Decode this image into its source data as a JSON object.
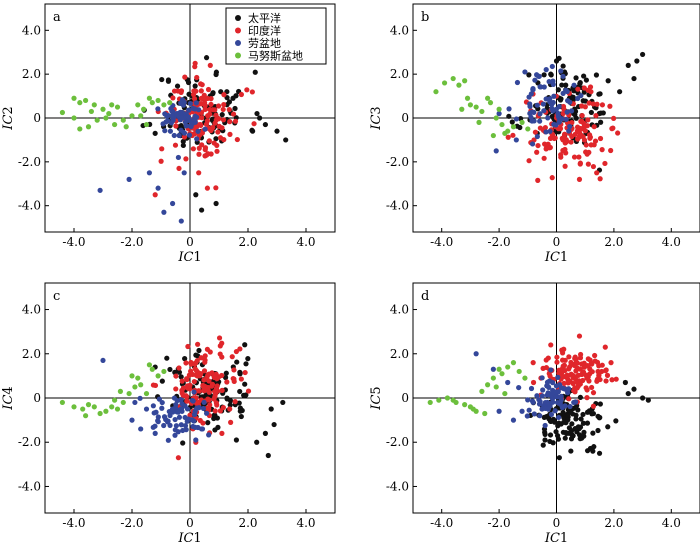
{
  "figure": {
    "legend": [
      {
        "label": "太平洋",
        "color": "#111111"
      },
      {
        "label": "印度洋",
        "color": "#e0262b"
      },
      {
        "label": "劳盆地",
        "color": "#34479a"
      },
      {
        "label": "马努斯盆地",
        "color": "#6cbf3c"
      }
    ]
  },
  "chart_data": [
    {
      "type": "scatter",
      "panel_label": "a",
      "xlabel": "IC1",
      "ylabel": "IC2",
      "xlim": [
        -5.0,
        5.0
      ],
      "ylim": [
        -5.2,
        5.2
      ],
      "xticks": [
        -4.0,
        -2.0,
        0,
        2.0,
        4.0
      ],
      "xtick_labels": [
        "-4.0",
        "-2.0",
        "0",
        "2.0",
        "4.0"
      ],
      "yticks": [
        -4.0,
        -2.0,
        0,
        2.0,
        4.0
      ],
      "ytick_labels": [
        "-4.0",
        "-2.0",
        "0",
        "2.0",
        "4.0"
      ],
      "has_legend": true,
      "series": [
        {
          "name": "太平洋",
          "color": "#111111",
          "n": 110,
          "cx": 0.4,
          "sx": 0.8,
          "cy": 0.3,
          "sy": 0.9,
          "seed": 11,
          "extra": [
            [
              2.6,
              -0.3
            ],
            [
              3.0,
              -0.6
            ],
            [
              3.3,
              -1.0
            ],
            [
              2.4,
              0.0
            ],
            [
              0.4,
              -4.2
            ],
            [
              0.9,
              -3.9
            ],
            [
              0.2,
              -3.5
            ]
          ]
        },
        {
          "name": "印度洋",
          "color": "#e0262b",
          "n": 130,
          "cx": 0.5,
          "sx": 0.6,
          "cy": -0.1,
          "sy": 1.0,
          "seed": 12,
          "extra": [
            [
              0.6,
              -3.2
            ],
            [
              0.3,
              -2.5
            ],
            [
              -1.2,
              -3.5
            ],
            [
              0.7,
              2.4
            ]
          ]
        },
        {
          "name": "劳盆地",
          "color": "#34479a",
          "n": 70,
          "cx": -0.3,
          "sx": 0.35,
          "cy": 0.0,
          "sy": 0.4,
          "seed": 13,
          "extra": [
            [
              -3.1,
              -3.3
            ],
            [
              -2.1,
              -2.8
            ],
            [
              -1.4,
              -2.5
            ],
            [
              -1.1,
              -3.2
            ],
            [
              -0.9,
              -4.3
            ],
            [
              -0.3,
              -4.7
            ],
            [
              -0.6,
              -3.9
            ],
            [
              -0.2,
              -2.5
            ],
            [
              -0.4,
              -1.8
            ]
          ]
        },
        {
          "name": "马努斯盆地",
          "color": "#6cbf3c",
          "n": 0,
          "cx": 0,
          "sx": 0,
          "cy": 0,
          "sy": 0,
          "seed": 14,
          "extra": [
            [
              -4.4,
              0.25
            ],
            [
              -4.0,
              0.9
            ],
            [
              -3.8,
              0.7
            ],
            [
              -3.6,
              0.8
            ],
            [
              -3.3,
              0.6
            ],
            [
              -3.0,
              0.4
            ],
            [
              -2.8,
              0.2
            ],
            [
              -3.5,
              -0.4
            ],
            [
              -3.2,
              -0.1
            ],
            [
              -2.9,
              0.0
            ],
            [
              -2.6,
              -0.3
            ],
            [
              -2.3,
              -0.1
            ],
            [
              -2.0,
              0.1
            ],
            [
              -1.8,
              0.6
            ],
            [
              -1.6,
              0.4
            ],
            [
              -1.4,
              0.9
            ],
            [
              -1.3,
              0.7
            ],
            [
              -1.1,
              0.8
            ],
            [
              -0.9,
              0.6
            ],
            [
              -0.7,
              0.7
            ],
            [
              -4.0,
              0.0
            ],
            [
              -3.8,
              -0.5
            ],
            [
              -2.7,
              0.6
            ],
            [
              -2.2,
              -0.4
            ],
            [
              -1.7,
              0.1
            ],
            [
              -1.5,
              -0.3
            ],
            [
              -3.4,
              0.3
            ],
            [
              -2.5,
              0.5
            ]
          ]
        }
      ]
    },
    {
      "type": "scatter",
      "panel_label": "b",
      "xlabel": "IC1",
      "ylabel": "IC3",
      "xlim": [
        -5.0,
        5.0
      ],
      "ylim": [
        -5.2,
        5.2
      ],
      "xticks": [
        -4.0,
        -2.0,
        0,
        2.0,
        4.0
      ],
      "xtick_labels": [
        "-4.0",
        "-2.0",
        "0",
        "2.0",
        "4.0"
      ],
      "yticks": [
        -4.0,
        -2.0,
        0,
        2.0,
        4.0
      ],
      "ytick_labels": [
        "-4.0",
        "-2.0",
        "0",
        "2.0",
        "4.0"
      ],
      "has_legend": false,
      "series": [
        {
          "name": "太平洋",
          "color": "#111111",
          "n": 110,
          "cx": 0.5,
          "sx": 0.7,
          "cy": 0.4,
          "sy": 0.9,
          "seed": 21,
          "extra": [
            [
              2.5,
              2.4
            ],
            [
              2.8,
              2.6
            ],
            [
              3.0,
              2.9
            ],
            [
              2.7,
              1.8
            ],
            [
              1.8,
              1.7
            ],
            [
              2.2,
              1.2
            ],
            [
              0.0,
              2.6
            ],
            [
              -0.2,
              2.0
            ]
          ]
        },
        {
          "name": "印度洋",
          "color": "#e0262b",
          "n": 130,
          "cx": 0.4,
          "sx": 0.7,
          "cy": -0.6,
          "sy": 0.8,
          "seed": 22,
          "extra": [
            [
              0.8,
              -2.8
            ],
            [
              1.4,
              -2.5
            ],
            [
              0.3,
              -2.2
            ],
            [
              1.6,
              0.6
            ],
            [
              1.2,
              1.2
            ]
          ]
        },
        {
          "name": "劳盆地",
          "color": "#34479a",
          "n": 70,
          "cx": -0.3,
          "sx": 0.5,
          "cy": 0.6,
          "sy": 0.7,
          "seed": 23,
          "extra": [
            [
              -2.1,
              -1.5
            ],
            [
              -2.0,
              0.2
            ],
            [
              -1.1,
              2.1
            ],
            [
              -0.6,
              1.9
            ],
            [
              -1.4,
              -1.0
            ]
          ]
        },
        {
          "name": "马努斯盆地",
          "color": "#6cbf3c",
          "n": 0,
          "cx": 0,
          "sx": 0,
          "cy": 0,
          "sy": 0,
          "seed": 24,
          "extra": [
            [
              -4.2,
              1.2
            ],
            [
              -3.9,
              1.6
            ],
            [
              -3.6,
              1.8
            ],
            [
              -3.4,
              1.5
            ],
            [
              -3.2,
              1.7
            ],
            [
              -3.0,
              0.6
            ],
            [
              -2.8,
              0.5
            ],
            [
              -2.6,
              0.3
            ],
            [
              -2.4,
              0.9
            ],
            [
              -2.3,
              0.7
            ],
            [
              -2.1,
              0.0
            ],
            [
              -1.9,
              -0.3
            ],
            [
              -1.7,
              -0.6
            ],
            [
              -1.5,
              -0.4
            ],
            [
              -1.2,
              -0.2
            ],
            [
              -1.0,
              -0.5
            ],
            [
              -3.3,
              0.4
            ],
            [
              -2.2,
              -0.8
            ],
            [
              -1.8,
              -0.7
            ],
            [
              -2.7,
              -0.2
            ],
            [
              -3.1,
              0.9
            ],
            [
              -2.0,
              0.4
            ]
          ]
        }
      ]
    },
    {
      "type": "scatter",
      "panel_label": "c",
      "xlabel": "IC1",
      "ylabel": "IC4",
      "xlim": [
        -5.0,
        5.0
      ],
      "ylim": [
        -5.2,
        5.2
      ],
      "xticks": [
        -4.0,
        -2.0,
        0,
        2.0,
        4.0
      ],
      "xtick_labels": [
        "-4.0",
        "-2.0",
        "0",
        "2.0",
        "4.0"
      ],
      "yticks": [
        -4.0,
        -2.0,
        0,
        2.0,
        4.0
      ],
      "ytick_labels": [
        "-4.0",
        "-2.0",
        "0",
        "2.0",
        "4.0"
      ],
      "has_legend": false,
      "series": [
        {
          "name": "太平洋",
          "color": "#111111",
          "n": 110,
          "cx": 0.6,
          "sx": 0.8,
          "cy": 0.2,
          "sy": 0.9,
          "seed": 31,
          "extra": [
            [
              2.6,
              -1.6
            ],
            [
              2.9,
              -1.2
            ],
            [
              3.2,
              -0.2
            ],
            [
              2.3,
              -2.0
            ],
            [
              2.7,
              -2.6
            ],
            [
              -0.8,
              1.8
            ],
            [
              -1.2,
              1.4
            ],
            [
              1.6,
              -1.9
            ]
          ]
        },
        {
          "name": "印度洋",
          "color": "#e0262b",
          "n": 130,
          "cx": 0.4,
          "sx": 0.6,
          "cy": 0.6,
          "sy": 0.9,
          "seed": 32,
          "extra": [
            [
              1.6,
              2.1
            ],
            [
              0.6,
              2.2
            ],
            [
              0.2,
              -2.0
            ],
            [
              -0.4,
              -2.7
            ],
            [
              1.1,
              -1.6
            ]
          ]
        },
        {
          "name": "劳盆地",
          "color": "#34479a",
          "n": 70,
          "cx": -0.4,
          "sx": 0.45,
          "cy": -0.9,
          "sy": 0.45,
          "seed": 33,
          "extra": [
            [
              -3.0,
              1.7
            ],
            [
              -2.0,
              -1.0
            ],
            [
              -1.7,
              -1.4
            ],
            [
              -1.5,
              -0.5
            ],
            [
              -1.9,
              -0.2
            ],
            [
              -1.2,
              -1.6
            ],
            [
              0.2,
              -1.9
            ],
            [
              0.4,
              -1.4
            ]
          ]
        },
        {
          "name": "马努斯盆地",
          "color": "#6cbf3c",
          "n": 0,
          "cx": 0,
          "sx": 0,
          "cy": 0,
          "sy": 0,
          "seed": 34,
          "extra": [
            [
              -4.4,
              -0.2
            ],
            [
              -4.0,
              -0.4
            ],
            [
              -3.7,
              -0.5
            ],
            [
              -3.5,
              -0.3
            ],
            [
              -3.3,
              -0.4
            ],
            [
              -3.1,
              -0.7
            ],
            [
              -2.9,
              -0.6
            ],
            [
              -2.7,
              -0.4
            ],
            [
              -2.5,
              -0.5
            ],
            [
              -2.3,
              -0.2
            ],
            [
              -2.1,
              0.2
            ],
            [
              -1.9,
              0.5
            ],
            [
              -1.7,
              0.6
            ],
            [
              -1.5,
              0.2
            ],
            [
              -2.0,
              1.0
            ],
            [
              -1.3,
              1.3
            ],
            [
              -1.1,
              1.0
            ],
            [
              -0.9,
              1.2
            ],
            [
              -2.4,
              0.3
            ],
            [
              -3.6,
              -0.8
            ],
            [
              -2.6,
              -0.1
            ],
            [
              -1.8,
              0.9
            ],
            [
              -1.4,
              1.5
            ]
          ]
        }
      ]
    },
    {
      "type": "scatter",
      "panel_label": "d",
      "xlabel": "IC1",
      "ylabel": "IC5",
      "xlim": [
        -5.0,
        5.0
      ],
      "ylim": [
        -5.2,
        5.2
      ],
      "xticks": [
        -4.0,
        -2.0,
        0,
        2.0,
        4.0
      ],
      "xtick_labels": [
        "-4.0",
        "-2.0",
        "0",
        "2.0",
        "4.0"
      ],
      "yticks": [
        -4.0,
        -2.0,
        0,
        2.0,
        4.0
      ],
      "ytick_labels": [
        "-4.0",
        "-2.0",
        "0",
        "2.0",
        "4.0"
      ],
      "has_legend": false,
      "series": [
        {
          "name": "太平洋",
          "color": "#111111",
          "n": 110,
          "cx": 0.5,
          "sx": 0.6,
          "cy": -1.0,
          "sy": 0.55,
          "seed": 41,
          "extra": [
            [
              2.4,
              0.7
            ],
            [
              2.7,
              0.4
            ],
            [
              3.0,
              0.0
            ],
            [
              3.2,
              -0.1
            ],
            [
              2.5,
              0.2
            ],
            [
              0.1,
              -2.7
            ],
            [
              0.5,
              -2.4
            ],
            [
              1.3,
              -2.2
            ],
            [
              1.5,
              -2.5
            ],
            [
              -0.4,
              -1.9
            ]
          ]
        },
        {
          "name": "印度洋",
          "color": "#e0262b",
          "n": 130,
          "cx": 0.6,
          "sx": 0.6,
          "cy": 1.1,
          "sy": 0.55,
          "seed": 42,
          "extra": [
            [
              1.7,
              2.3
            ],
            [
              0.8,
              2.8
            ],
            [
              -0.2,
              2.4
            ],
            [
              1.9,
              1.6
            ],
            [
              -0.8,
              0.7
            ]
          ]
        },
        {
          "name": "劳盆地",
          "color": "#34479a",
          "n": 70,
          "cx": -0.3,
          "sx": 0.45,
          "cy": 0.1,
          "sy": 0.5,
          "seed": 43,
          "extra": [
            [
              -2.8,
              2.0
            ],
            [
              -2.2,
              1.3
            ],
            [
              -1.7,
              0.7
            ],
            [
              -2.0,
              -0.6
            ],
            [
              -1.5,
              -1.0
            ],
            [
              -1.2,
              -0.6
            ],
            [
              0.6,
              -0.2
            ]
          ]
        },
        {
          "name": "马努斯盆地",
          "color": "#6cbf3c",
          "n": 0,
          "cx": 0,
          "sx": 0,
          "cy": 0,
          "sy": 0,
          "seed": 44,
          "extra": [
            [
              -4.4,
              -0.2
            ],
            [
              -4.1,
              -0.1
            ],
            [
              -3.8,
              0.0
            ],
            [
              -3.5,
              -0.2
            ],
            [
              -3.2,
              -0.3
            ],
            [
              -3.0,
              -0.4
            ],
            [
              -2.8,
              -0.6
            ],
            [
              -2.6,
              0.3
            ],
            [
              -2.4,
              0.6
            ],
            [
              -2.2,
              0.9
            ],
            [
              -2.0,
              1.3
            ],
            [
              -1.9,
              1.1
            ],
            [
              -1.7,
              1.4
            ],
            [
              -1.5,
              1.6
            ],
            [
              -1.3,
              1.2
            ],
            [
              -1.1,
              0.9
            ],
            [
              -2.9,
              -0.5
            ],
            [
              -2.5,
              -0.7
            ],
            [
              -2.1,
              0.5
            ],
            [
              -3.6,
              -0.1
            ],
            [
              -1.8,
              0.2
            ]
          ]
        }
      ]
    }
  ]
}
